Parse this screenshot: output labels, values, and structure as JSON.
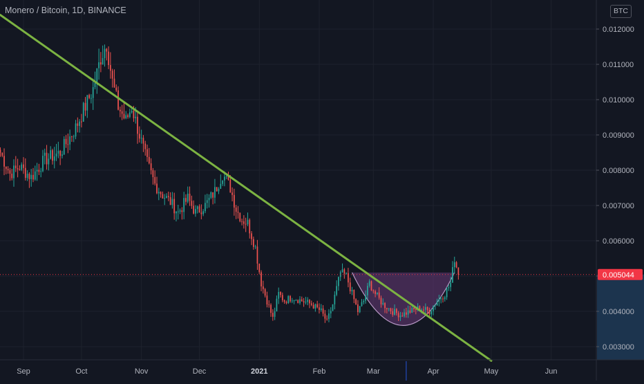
{
  "header": {
    "symbol_title": "Monero / Bitcoin, 1D, BINANCE",
    "currency_badge": "BTC"
  },
  "colors": {
    "background": "#131722",
    "up_candle": "#26a69a",
    "down_candle": "#ef5350",
    "trendline": "#7cb342",
    "cup_fill": "#6a3a78",
    "last_price_badge": "#f23645",
    "axis_text": "#b2b5be"
  },
  "chart_data": {
    "type": "candlestick",
    "symbol": "Monero / Bitcoin",
    "interval": "1D",
    "exchange": "BINANCE",
    "ylim": [
      0.0027,
      0.0126
    ],
    "y_ticks": [
      "0.003000",
      "0.004000",
      "0.005000",
      "0.006000",
      "0.007000",
      "0.008000",
      "0.009000",
      "0.010000",
      "0.011000",
      "0.012000"
    ],
    "x_ticks": [
      {
        "label": "Sep",
        "date": "2020-09-01"
      },
      {
        "label": "Oct",
        "date": "2020-10-01"
      },
      {
        "label": "Nov",
        "date": "2020-11-01"
      },
      {
        "label": "Dec",
        "date": "2020-12-01"
      },
      {
        "label": "2021",
        "date": "2021-01-01"
      },
      {
        "label": "Feb",
        "date": "2021-02-01"
      },
      {
        "label": "Mar",
        "date": "2021-03-01"
      },
      {
        "label": "Apr",
        "date": "2021-04-01"
      },
      {
        "label": "May",
        "date": "2021-05-01"
      },
      {
        "label": "Jun",
        "date": "2021-06-01"
      }
    ],
    "last_price": 0.005044,
    "last_price_label": "0.005044",
    "price_anchors": [
      [
        "2020-08-20",
        0.0085
      ],
      [
        "2020-08-25",
        0.0079
      ],
      [
        "2020-08-30",
        0.0081
      ],
      [
        "2020-09-05",
        0.0078
      ],
      [
        "2020-09-12",
        0.0083
      ],
      [
        "2020-09-20",
        0.0085
      ],
      [
        "2020-09-28",
        0.0092
      ],
      [
        "2020-10-02",
        0.0097
      ],
      [
        "2020-10-07",
        0.0103
      ],
      [
        "2020-10-11",
        0.0112
      ],
      [
        "2020-10-14",
        0.0116
      ],
      [
        "2020-10-17",
        0.0105
      ],
      [
        "2020-10-20",
        0.0098
      ],
      [
        "2020-10-24",
        0.0094
      ],
      [
        "2020-10-27",
        0.0098
      ],
      [
        "2020-10-31",
        0.009
      ],
      [
        "2020-11-04",
        0.0082
      ],
      [
        "2020-11-08",
        0.0076
      ],
      [
        "2020-11-12",
        0.0073
      ],
      [
        "2020-11-16",
        0.0071
      ],
      [
        "2020-11-20",
        0.0068
      ],
      [
        "2020-11-25",
        0.0072
      ],
      [
        "2020-11-29",
        0.0068
      ],
      [
        "2020-12-04",
        0.007
      ],
      [
        "2020-12-09",
        0.0074
      ],
      [
        "2020-12-13",
        0.0079
      ],
      [
        "2020-12-17",
        0.0075
      ],
      [
        "2020-12-20",
        0.0069
      ],
      [
        "2020-12-23",
        0.0066
      ],
      [
        "2020-12-26",
        0.0065
      ],
      [
        "2020-12-30",
        0.0058
      ],
      [
        "2021-01-02",
        0.0048
      ],
      [
        "2021-01-05",
        0.0043
      ],
      [
        "2021-01-08",
        0.0038
      ],
      [
        "2021-01-11",
        0.0045
      ],
      [
        "2021-01-14",
        0.0043
      ],
      [
        "2021-01-18",
        0.0044
      ],
      [
        "2021-01-23",
        0.0043
      ],
      [
        "2021-01-28",
        0.0042
      ],
      [
        "2021-02-02",
        0.004
      ],
      [
        "2021-02-05",
        0.0037
      ],
      [
        "2021-02-08",
        0.0042
      ],
      [
        "2021-02-12",
        0.0051
      ],
      [
        "2021-02-15",
        0.005
      ],
      [
        "2021-02-18",
        0.0045
      ],
      [
        "2021-02-21",
        0.004
      ],
      [
        "2021-02-24",
        0.0043
      ],
      [
        "2021-02-27",
        0.0048
      ],
      [
        "2021-03-02",
        0.0045
      ],
      [
        "2021-03-06",
        0.0042
      ],
      [
        "2021-03-11",
        0.004
      ],
      [
        "2021-03-15",
        0.0039
      ],
      [
        "2021-03-20",
        0.004
      ],
      [
        "2021-03-25",
        0.0041
      ],
      [
        "2021-03-30",
        0.004
      ],
      [
        "2021-04-03",
        0.0043
      ],
      [
        "2021-04-07",
        0.0045
      ],
      [
        "2021-04-10",
        0.0048
      ],
      [
        "2021-04-12",
        0.0055
      ],
      [
        "2021-04-14",
        0.00504
      ]
    ],
    "annotations": [
      {
        "type": "trendline",
        "points": [
          [
            "2020-08-20",
            0.0124
          ],
          [
            "2021-05-01",
            0.0026
          ]
        ]
      },
      {
        "type": "cup-shape",
        "start": [
          "2021-02-18",
          0.0051
        ],
        "end": [
          "2021-04-12",
          0.0051
        ],
        "bottom": 0.0036
      },
      {
        "type": "vertical-marker",
        "date": "2021-03-18"
      }
    ]
  }
}
